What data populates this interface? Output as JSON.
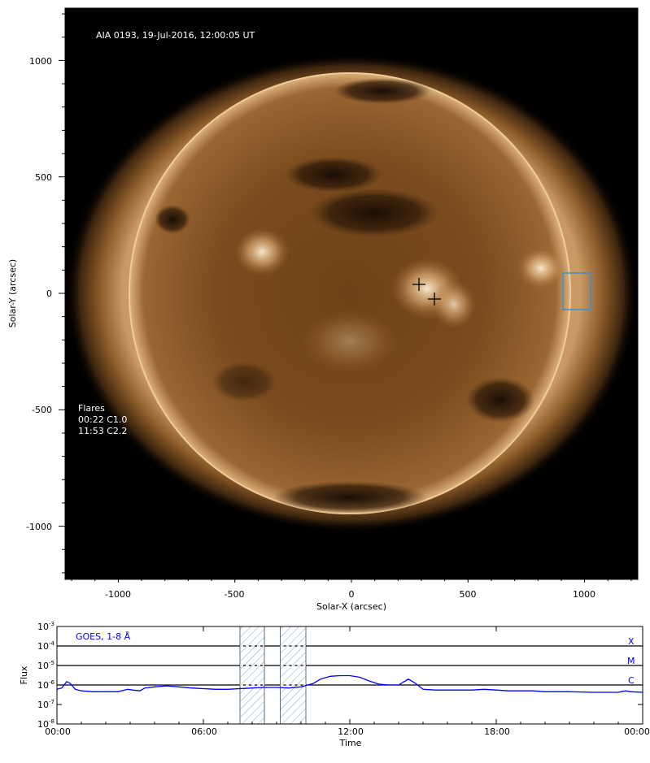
{
  "image": {
    "title": "AIA 0193, 19-Jul-2016, 12:00:05 UT",
    "flares_heading": "Flares",
    "flares": [
      "00:22 C1.0",
      "11:53 C2.2"
    ],
    "xlabel": "Solar-X (arcsec)",
    "ylabel": "Solar-Y (arcsec)",
    "xticks": [
      "-1000",
      "-500",
      "0",
      "500",
      "1000"
    ],
    "yticks": [
      "1000",
      "500",
      "0",
      "-500",
      "-1000"
    ],
    "colors": {
      "box": "#3a8fd6",
      "disk": "#7a4a1c",
      "background": "#000000"
    }
  },
  "chart_data": {
    "type": "line",
    "title": "",
    "legend": "GOES, 1-8 Å",
    "xlabel": "Time",
    "ylabel": "Flux",
    "xticks": [
      "00:00",
      "06:00",
      "12:00",
      "18:00",
      "00:00"
    ],
    "yticks": [
      {
        "base": "10",
        "exp": "-3"
      },
      {
        "base": "10",
        "exp": "-4"
      },
      {
        "base": "10",
        "exp": "-5"
      },
      {
        "base": "10",
        "exp": "-6"
      },
      {
        "base": "10",
        "exp": "-7"
      },
      {
        "base": "10",
        "exp": "-8"
      }
    ],
    "xlim_hours": [
      0,
      24
    ],
    "ylim": [
      1e-08,
      0.001
    ],
    "yscale": "log",
    "class_lines": [
      {
        "label": "X",
        "level": 0.0001
      },
      {
        "label": "M",
        "level": 1e-05
      },
      {
        "label": "C",
        "level": 1e-06
      }
    ],
    "hatched_windows_hours": [
      [
        7.5,
        8.5
      ],
      [
        9.15,
        10.2
      ]
    ],
    "series": [
      {
        "color": "#0000ff",
        "x_hours": [
          0.0,
          0.2,
          0.4,
          0.55,
          0.75,
          1.0,
          1.5,
          2.0,
          2.5,
          2.9,
          3.1,
          3.4,
          3.6,
          4.0,
          4.5,
          5.0,
          5.5,
          6.0,
          6.5,
          7.0,
          7.5,
          8.0,
          8.5,
          9.0,
          9.5,
          10.0,
          10.5,
          10.8,
          11.2,
          11.6,
          12.0,
          12.4,
          12.8,
          13.2,
          13.6,
          14.0,
          14.4,
          14.7,
          15.0,
          15.5,
          16.0,
          17.0,
          17.5,
          18.0,
          18.5,
          19.0,
          19.5,
          20.0,
          21.0,
          22.0,
          23.0,
          23.3,
          23.5,
          24.0
        ],
        "values": [
          6e-07,
          7e-07,
          1.5e-06,
          1.2e-06,
          6e-07,
          5e-07,
          4.5e-07,
          4.5e-07,
          4.5e-07,
          6e-07,
          5.5e-07,
          5e-07,
          7e-07,
          8e-07,
          9e-07,
          8e-07,
          7e-07,
          6.5e-07,
          6e-07,
          6e-07,
          6.5e-07,
          7e-07,
          7.5e-07,
          7.5e-07,
          7e-07,
          8e-07,
          1.2e-06,
          2e-06,
          2.8e-06,
          3e-06,
          3e-06,
          2.5e-06,
          1.6e-06,
          1.1e-06,
          1e-06,
          1e-06,
          2e-06,
          1.2e-06,
          6e-07,
          5.5e-07,
          5.5e-07,
          5.5e-07,
          6e-07,
          5.5e-07,
          5e-07,
          5e-07,
          5e-07,
          4.5e-07,
          4.5e-07,
          4.2e-07,
          4.2e-07,
          5e-07,
          4.5e-07,
          4.2e-07
        ]
      }
    ]
  }
}
